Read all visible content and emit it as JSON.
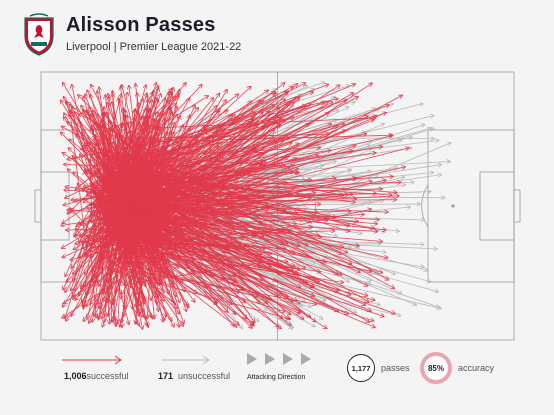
{
  "header": {
    "title": "Alisson Passes",
    "subtitle": "Liverpool | Premier League 2021-22",
    "crest_icon": "liverpool-crest-icon"
  },
  "legend": {
    "successful_count": "1,006",
    "successful_label": "successful",
    "unsuccessful_count": "171",
    "unsuccessful_label": "unsuccessful",
    "direction_label": "Attacking Direction",
    "passes_count": "1,177",
    "passes_label": "passes",
    "accuracy_value": "85%",
    "accuracy_label": "accuracy"
  },
  "colors": {
    "successful": "#e03a4b",
    "unsuccessful": "#b9b9b9",
    "pitch_lines": "#9a9a9a",
    "background": "#f4f4f4"
  },
  "chart_data": {
    "type": "pass-map",
    "orientation": "left-to-right",
    "total_passes": 1177,
    "successful": 1006,
    "unsuccessful": 171,
    "accuracy_pct": 85
  }
}
